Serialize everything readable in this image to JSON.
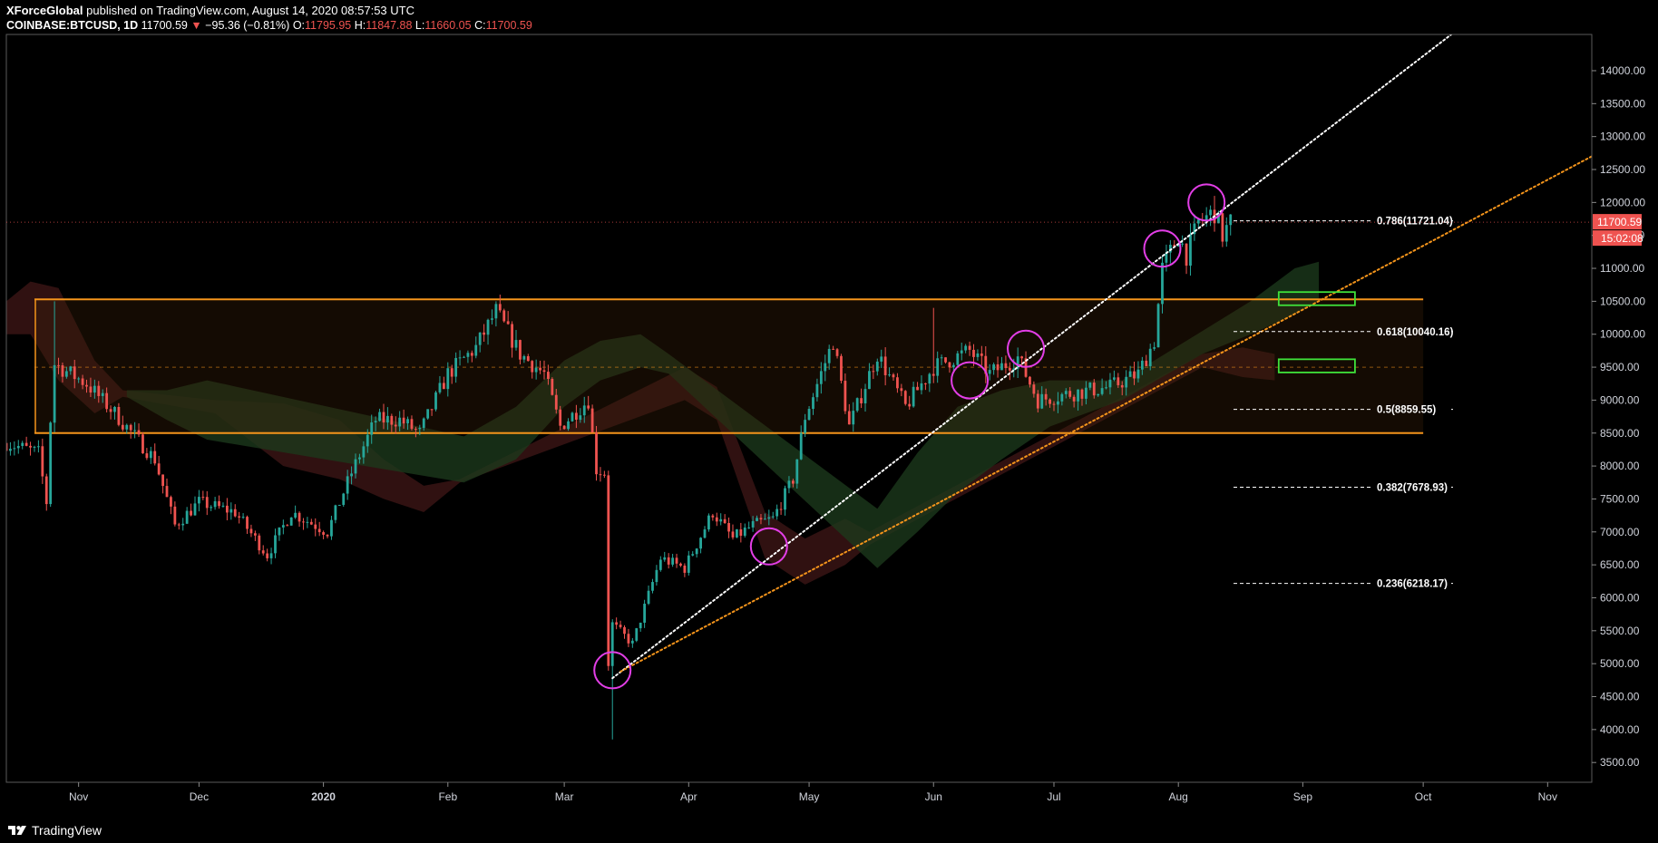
{
  "header": {
    "author": "XForceGlobal",
    "published": "published on TradingView.com, August 14, 2020 08:57:53 UTC",
    "symbol": "COINBASE:BTCUSD, 1D",
    "last": "11700.59",
    "change_arrow": "▼",
    "change": "−95.36 (−0.81%)",
    "o_label": "O:",
    "o_value": "11795.95",
    "h_label": "H:",
    "h_value": "11847.88",
    "l_label": "L:",
    "l_value": "11660.05",
    "c_label": "C:",
    "c_value": "11700.59"
  },
  "footer": {
    "brand": "TradingView",
    "logo_icon": "tradingview-logo-icon"
  },
  "colors": {
    "background": "#000000",
    "up": "#26a69a",
    "down": "#ef5350",
    "range_line": "#f4941b",
    "fib_line": "#ffffff",
    "circle": "#e23ee6",
    "box": "#3fe23a",
    "cloud_green": "#1c3a1c",
    "cloud_red": "#3e1616",
    "price_badge": "#ef5350"
  },
  "chart_data": {
    "type": "candlestick",
    "title": "COINBASE:BTCUSD, 1D",
    "xlabel": "",
    "ylabel": "",
    "x_range": [
      "2019-10-14",
      "2020-11-12"
    ],
    "ylim": [
      3200,
      14550
    ],
    "y_ticks": [
      "14000.00",
      "13500.00",
      "13000.00",
      "12500.00",
      "12000.00",
      "11500.00",
      "11000.00",
      "10500.00",
      "10000.00",
      "9500.00",
      "9000.00",
      "8500.00",
      "8000.00",
      "7500.00",
      "7000.00",
      "6500.00",
      "6000.00",
      "5500.00",
      "5000.00",
      "4500.00",
      "4000.00",
      "3500.00"
    ],
    "x_ticks": [
      {
        "label": "Nov",
        "date": "2019-11-01"
      },
      {
        "label": "Dec",
        "date": "2019-12-01"
      },
      {
        "label": "2020",
        "date": "2020-01-01"
      },
      {
        "label": "Feb",
        "date": "2020-02-01"
      },
      {
        "label": "Mar",
        "date": "2020-03-01"
      },
      {
        "label": "Apr",
        "date": "2020-04-01"
      },
      {
        "label": "May",
        "date": "2020-05-01"
      },
      {
        "label": "Jun",
        "date": "2020-06-01"
      },
      {
        "label": "Jul",
        "date": "2020-07-01"
      },
      {
        "label": "Aug",
        "date": "2020-08-01"
      },
      {
        "label": "Sep",
        "date": "2020-09-01"
      },
      {
        "label": "Oct",
        "date": "2020-10-01"
      },
      {
        "label": "Nov",
        "date": "2020-11-01"
      }
    ],
    "price_path": [
      [
        "2019-10-14",
        8350
      ],
      [
        "2019-10-22",
        8200
      ],
      [
        "2019-10-24",
        7450
      ],
      [
        "2019-10-25",
        8700
      ],
      [
        "2019-10-26",
        9550
      ],
      [
        "2019-11-03",
        9250
      ],
      [
        "2019-11-10",
        8800
      ],
      [
        "2019-11-20",
        8100
      ],
      [
        "2019-11-25",
        7100
      ],
      [
        "2019-12-01",
        7450
      ],
      [
        "2019-12-10",
        7300
      ],
      [
        "2019-12-18",
        6650
      ],
      [
        "2019-12-24",
        7300
      ],
      [
        "2020-01-02",
        7000
      ],
      [
        "2020-01-08",
        7900
      ],
      [
        "2020-01-14",
        8700
      ],
      [
        "2020-01-20",
        8700
      ],
      [
        "2020-01-25",
        8500
      ],
      [
        "2020-02-01",
        9400
      ],
      [
        "2020-02-08",
        9800
      ],
      [
        "2020-02-13",
        10350
      ],
      [
        "2020-02-19",
        9700
      ],
      [
        "2020-02-25",
        9400
      ],
      [
        "2020-02-29",
        8600
      ],
      [
        "2020-03-07",
        9000
      ],
      [
        "2020-03-09",
        7950
      ],
      [
        "2020-03-11",
        7900
      ],
      [
        "2020-03-12",
        5000
      ],
      [
        "2020-03-13",
        5600
      ],
      [
        "2020-03-18",
        5300
      ],
      [
        "2020-03-25",
        6600
      ],
      [
        "2020-03-31",
        6450
      ],
      [
        "2020-04-07",
        7300
      ],
      [
        "2020-04-12",
        6900
      ],
      [
        "2020-04-17",
        7100
      ],
      [
        "2020-04-22",
        7200
      ],
      [
        "2020-04-27",
        7800
      ],
      [
        "2020-04-30",
        8750
      ],
      [
        "2020-05-07",
        9900
      ],
      [
        "2020-05-11",
        8600
      ],
      [
        "2020-05-18",
        9700
      ],
      [
        "2020-05-25",
        8900
      ],
      [
        "2020-06-01",
        9500
      ],
      [
        "2020-06-10",
        9750
      ],
      [
        "2020-06-15",
        9400
      ],
      [
        "2020-06-22",
        9650
      ],
      [
        "2020-06-27",
        9000
      ],
      [
        "2020-07-05",
        9100
      ],
      [
        "2020-07-15",
        9200
      ],
      [
        "2020-07-22",
        9400
      ],
      [
        "2020-07-26",
        9900
      ],
      [
        "2020-07-28",
        11000
      ],
      [
        "2020-08-01",
        11500
      ],
      [
        "2020-08-03",
        11200
      ],
      [
        "2020-08-06",
        11700
      ],
      [
        "2020-08-10",
        11850
      ],
      [
        "2020-08-12",
        11500
      ],
      [
        "2020-08-14",
        11700
      ]
    ],
    "extremes": [
      {
        "date": "2019-10-26",
        "high": 10500
      },
      {
        "date": "2020-02-13",
        "high": 10500
      },
      {
        "date": "2020-03-13",
        "low": 3850
      },
      {
        "date": "2020-06-01",
        "high": 10400
      },
      {
        "date": "2020-08-10",
        "high": 12100
      }
    ],
    "range_zone": {
      "upper": 10530,
      "lower": 8500,
      "mid": 9500,
      "from": "2019-10-21",
      "to": "2020-10-01"
    },
    "fib_levels": [
      {
        "label": "0.786(11721.04)",
        "value": 11721.04
      },
      {
        "label": "0.618(10040.16)",
        "value": 10040.16
      },
      {
        "label": "0.5(8859.55)",
        "value": 8859.55
      },
      {
        "label": "0.382(7678.93)",
        "value": 7678.93
      },
      {
        "label": "0.236(6218.17)",
        "value": 6218.17
      }
    ],
    "trendlines": [
      {
        "name": "white-trendline",
        "from": {
          "date": "2020-03-13",
          "price": 4780
        },
        "to": {
          "date": "2020-10-08",
          "price": 14550
        }
      },
      {
        "name": "orange-trendline",
        "from": {
          "date": "2020-03-15",
          "price": 4880
        },
        "to": {
          "date": "2020-11-12",
          "price": 12700
        }
      }
    ],
    "circles": [
      {
        "date": "2020-03-13",
        "price": 4900
      },
      {
        "date": "2020-04-21",
        "price": 6780
      },
      {
        "date": "2020-06-10",
        "price": 9300
      },
      {
        "date": "2020-06-24",
        "price": 9780
      },
      {
        "date": "2020-07-28",
        "price": 11300
      },
      {
        "date": "2020-08-08",
        "price": 12000
      }
    ],
    "target_boxes": [
      {
        "from": "2020-08-26",
        "to": "2020-09-14",
        "low": 10440,
        "high": 10640
      },
      {
        "from": "2020-08-26",
        "to": "2020-09-14",
        "low": 9420,
        "high": 9620
      }
    ],
    "ichimoku_cloud": {
      "green": [
        [
          "2019-11-13",
          9050,
          9150
        ],
        [
          "2019-11-23",
          8700,
          9150
        ],
        [
          "2019-12-03",
          8400,
          9300
        ],
        [
          "2020-02-05",
          7750,
          8450
        ],
        [
          "2020-02-18",
          8100,
          8900
        ],
        [
          "2020-03-01",
          8900,
          9600
        ],
        [
          "2020-03-10",
          9300,
          9900
        ],
        [
          "2020-03-20",
          9500,
          10000
        ],
        [
          "2020-03-27",
          9400,
          9700
        ],
        [
          "2020-05-18",
          6450,
          7350
        ],
        [
          "2020-05-28",
          7000,
          8200
        ],
        [
          "2020-06-07",
          7600,
          8900
        ],
        [
          "2020-06-18",
          8100,
          9150
        ],
        [
          "2020-06-30",
          8600,
          9300
        ],
        [
          "2020-07-18",
          9000,
          9300
        ],
        [
          "2020-08-07",
          9700,
          10050
        ],
        [
          "2020-08-19",
          10000,
          10500
        ],
        [
          "2020-08-30",
          10300,
          11000
        ],
        [
          "2020-09-05",
          10500,
          11100
        ]
      ],
      "red": [
        [
          "2019-10-14",
          10000,
          10500
        ],
        [
          "2019-10-20",
          10000,
          10800
        ],
        [
          "2019-10-27",
          9300,
          10700
        ],
        [
          "2019-11-05",
          8800,
          9600
        ],
        [
          "2019-11-12",
          9050,
          9150
        ],
        [
          "2019-12-05",
          8800,
          9000
        ],
        [
          "2019-12-22",
          8000,
          8950
        ],
        [
          "2020-01-05",
          7800,
          8700
        ],
        [
          "2020-01-16",
          7500,
          8100
        ],
        [
          "2020-01-26",
          7300,
          7700
        ],
        [
          "2020-02-04",
          7750,
          7800
        ],
        [
          "2020-03-31",
          9000,
          9500
        ],
        [
          "2020-04-08",
          8700,
          9200
        ],
        [
          "2020-04-20",
          6600,
          7300
        ],
        [
          "2020-04-30",
          6200,
          6900
        ],
        [
          "2020-05-10",
          6500,
          7200
        ],
        [
          "2020-05-16",
          6800,
          7000
        ],
        [
          "2020-08-07",
          9500,
          9700
        ],
        [
          "2020-08-17",
          9350,
          9800
        ],
        [
          "2020-08-25",
          9300,
          9700
        ]
      ]
    },
    "price_labels": {
      "last": "11700.59",
      "countdown": "15:02:08"
    }
  }
}
